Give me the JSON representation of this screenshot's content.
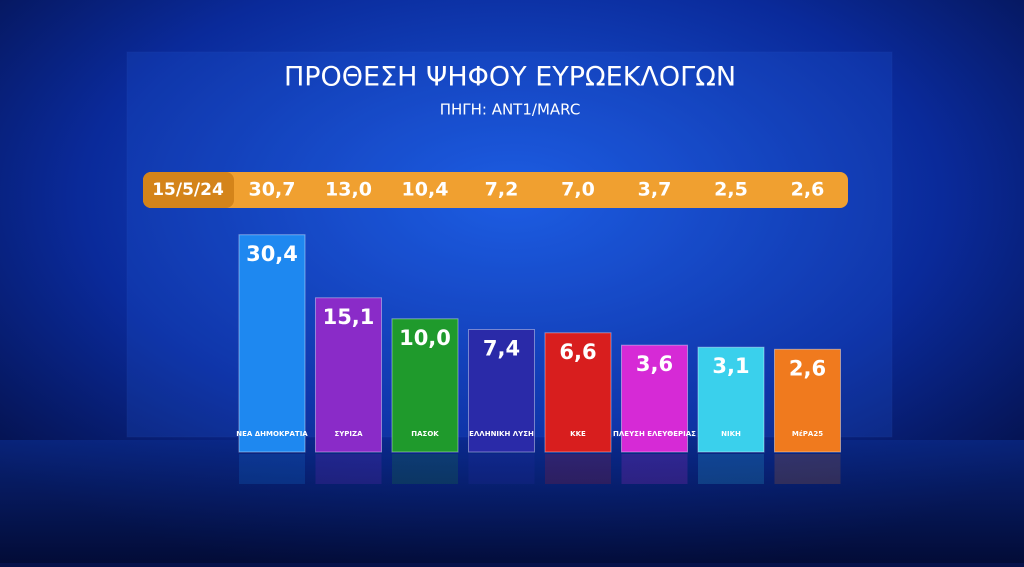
{
  "chart_data": {
    "type": "bar",
    "title": "ΠΡΟΘΕΣΗ ΨΗΦΟΥ ΕΥΡΩΕΚΛΟΓΩΝ",
    "subtitle": "ΠΗΓΗ: ANT1/MARC",
    "categories": [
      "ΝΕΑ ΔΗΜΟΚΡΑΤΙΑ",
      "ΣΥΡΙΖΑ",
      "ΠΑΣΟΚ",
      "ΕΛΛΗΝΙΚΗ ΛΥΣΗ",
      "ΚΚΕ",
      "ΠΛΕΥΣΗ ΕΛΕΥΘΕΡΙΑΣ",
      "ΝΙΚΗ",
      "ΜέΡΑ25"
    ],
    "values": [
      30.4,
      15.1,
      10.0,
      7.4,
      6.6,
      3.6,
      3.1,
      2.6
    ],
    "value_labels": [
      "30,4",
      "15,1",
      "10,0",
      "7,4",
      "6,6",
      "3,6",
      "3,1",
      "2,6"
    ],
    "colors": [
      "#1e88f0",
      "#8a2bc8",
      "#1f9a2c",
      "#2a2aa8",
      "#d81e1e",
      "#d62ad6",
      "#3ad0ec",
      "#f07a1e"
    ],
    "previous_poll": {
      "date": "15/5/24",
      "values": [
        "30,7",
        "13,0",
        "10,4",
        "7,2",
        "7,0",
        "3,7",
        "2,5",
        "2,6"
      ]
    }
  }
}
